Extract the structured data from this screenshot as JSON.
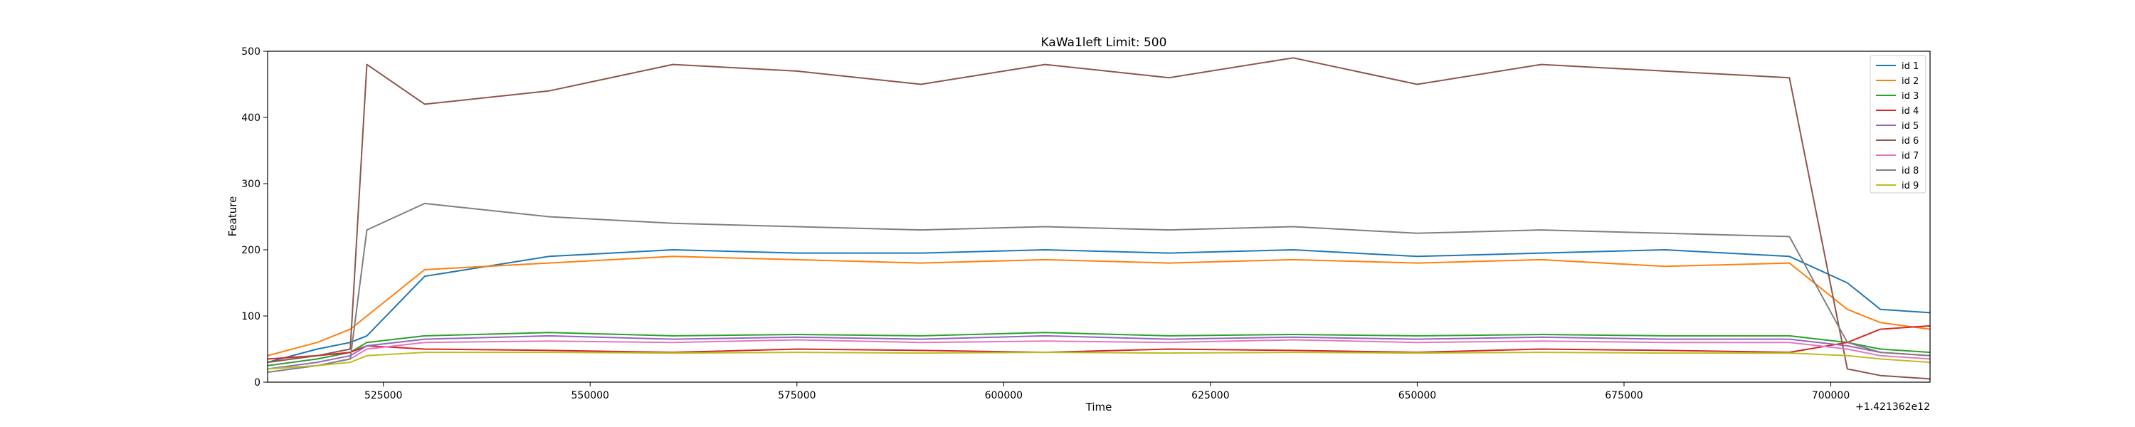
{
  "chart_data": {
    "type": "line",
    "title": "KaWa1left Limit: 500",
    "xlabel": "Time",
    "ylabel": "Feature",
    "x_offset_label": "+1.421362e12",
    "xlim": [
      511000,
      712000
    ],
    "ylim": [
      0,
      500
    ],
    "x_ticks": [
      525000,
      550000,
      575000,
      600000,
      625000,
      650000,
      675000,
      700000
    ],
    "x_tick_labels": [
      "525000",
      "550000",
      "575000",
      "600000",
      "625000",
      "650000",
      "675000",
      "700000"
    ],
    "y_ticks": [
      0,
      100,
      200,
      300,
      400,
      500
    ],
    "y_tick_labels": [
      "0",
      "100",
      "200",
      "300",
      "400",
      "500"
    ],
    "grid": false,
    "legend_position": "top-right",
    "series": [
      {
        "name": "id 1",
        "color": "#1f77b4",
        "x": [
          511000,
          517000,
          521000,
          523000,
          530000,
          545000,
          560000,
          575000,
          590000,
          605000,
          620000,
          635000,
          650000,
          665000,
          680000,
          695000,
          702000,
          706000,
          712000
        ],
        "values": [
          30,
          50,
          60,
          70,
          160,
          190,
          200,
          195,
          195,
          200,
          195,
          200,
          190,
          195,
          200,
          190,
          150,
          110,
          105
        ]
      },
      {
        "name": "id 2",
        "color": "#ff7f0e",
        "x": [
          511000,
          517000,
          521000,
          523000,
          530000,
          545000,
          560000,
          575000,
          590000,
          605000,
          620000,
          635000,
          650000,
          665000,
          680000,
          695000,
          702000,
          706000,
          712000
        ],
        "values": [
          40,
          60,
          80,
          100,
          170,
          180,
          190,
          185,
          180,
          185,
          180,
          185,
          180,
          185,
          175,
          180,
          110,
          90,
          80
        ]
      },
      {
        "name": "id 3",
        "color": "#2ca02c",
        "x": [
          511000,
          517000,
          521000,
          523000,
          530000,
          545000,
          560000,
          575000,
          590000,
          605000,
          620000,
          635000,
          650000,
          665000,
          680000,
          695000,
          702000,
          706000,
          712000
        ],
        "values": [
          25,
          35,
          45,
          60,
          70,
          75,
          70,
          72,
          70,
          75,
          70,
          72,
          70,
          72,
          70,
          70,
          60,
          50,
          45
        ]
      },
      {
        "name": "id 4",
        "color": "#d62728",
        "x": [
          511000,
          517000,
          521000,
          523000,
          530000,
          545000,
          560000,
          575000,
          590000,
          605000,
          620000,
          635000,
          650000,
          665000,
          680000,
          695000,
          702000,
          706000,
          712000
        ],
        "values": [
          35,
          40,
          45,
          55,
          50,
          48,
          45,
          50,
          48,
          45,
          50,
          48,
          45,
          50,
          48,
          45,
          60,
          80,
          85
        ]
      },
      {
        "name": "id 5",
        "color": "#9467bd",
        "x": [
          511000,
          517000,
          521000,
          523000,
          530000,
          545000,
          560000,
          575000,
          590000,
          605000,
          620000,
          635000,
          650000,
          665000,
          680000,
          695000,
          702000,
          706000,
          712000
        ],
        "values": [
          20,
          30,
          40,
          55,
          65,
          70,
          65,
          68,
          65,
          70,
          65,
          68,
          65,
          68,
          65,
          65,
          55,
          45,
          40
        ]
      },
      {
        "name": "id 6",
        "color": "#8c564b",
        "x": [
          511000,
          517000,
          521000,
          523000,
          530000,
          545000,
          560000,
          575000,
          590000,
          605000,
          620000,
          635000,
          650000,
          665000,
          680000,
          695000,
          702000,
          706000,
          712000
        ],
        "values": [
          30,
          40,
          50,
          480,
          420,
          440,
          480,
          470,
          450,
          480,
          460,
          490,
          450,
          480,
          470,
          460,
          20,
          10,
          5
        ]
      },
      {
        "name": "id 7",
        "color": "#e377c2",
        "x": [
          511000,
          517000,
          521000,
          523000,
          530000,
          545000,
          560000,
          575000,
          590000,
          605000,
          620000,
          635000,
          650000,
          665000,
          680000,
          695000,
          702000,
          706000,
          712000
        ],
        "values": [
          20,
          25,
          35,
          50,
          60,
          62,
          60,
          64,
          60,
          62,
          60,
          64,
          60,
          62,
          60,
          60,
          50,
          40,
          35
        ]
      },
      {
        "name": "id 8",
        "color": "#7f7f7f",
        "x": [
          511000,
          517000,
          521000,
          523000,
          530000,
          545000,
          560000,
          575000,
          590000,
          605000,
          620000,
          635000,
          650000,
          665000,
          680000,
          695000,
          702000,
          706000,
          712000
        ],
        "values": [
          15,
          25,
          35,
          230,
          270,
          250,
          240,
          235,
          230,
          235,
          230,
          235,
          225,
          230,
          225,
          220,
          60,
          45,
          40
        ]
      },
      {
        "name": "id 9",
        "color": "#bcbd22",
        "x": [
          511000,
          517000,
          521000,
          523000,
          530000,
          545000,
          560000,
          575000,
          590000,
          605000,
          620000,
          635000,
          650000,
          665000,
          680000,
          695000,
          702000,
          706000,
          712000
        ],
        "values": [
          20,
          25,
          30,
          40,
          45,
          45,
          44,
          45,
          44,
          45,
          44,
          45,
          44,
          45,
          44,
          44,
          40,
          35,
          30
        ]
      }
    ]
  }
}
